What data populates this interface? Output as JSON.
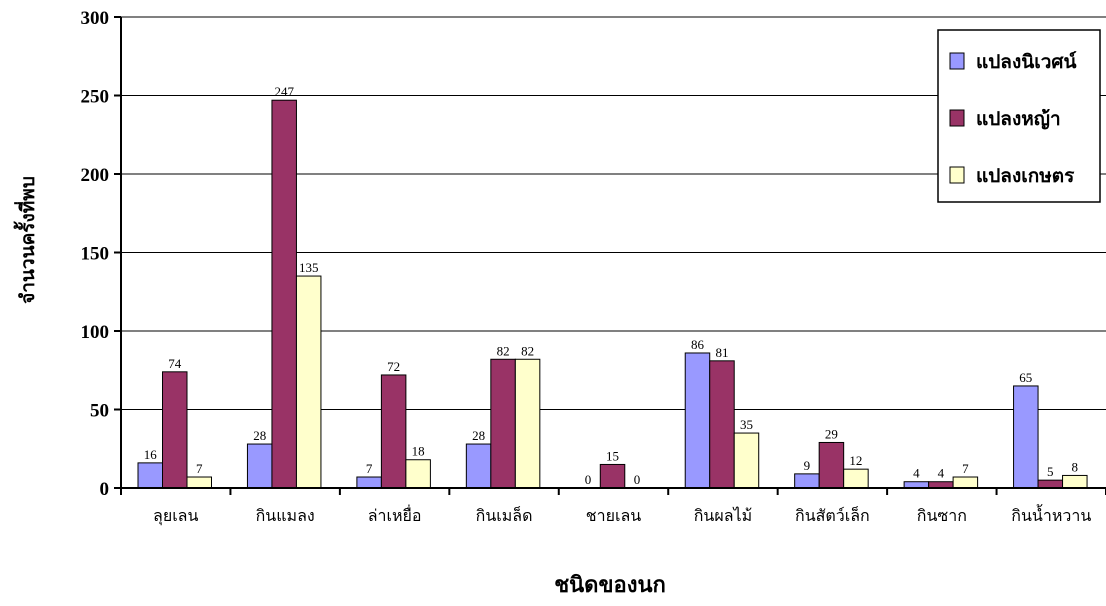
{
  "chart_data": {
    "type": "bar",
    "title": "",
    "xlabel": "ชนิดของนก",
    "ylabel": "จำนวนครั้งที่พบ",
    "ylim": [
      0,
      300
    ],
    "yticks": [
      "0",
      "50",
      "100",
      "150",
      "200",
      "250",
      "300"
    ],
    "grid": true,
    "legend_position": "top-right",
    "categories": [
      "ลุยเลน",
      "กินแมลง",
      "ล่าเหยื่อ",
      "กินเมล็ด",
      "ชายเลน",
      "กินผลไม้",
      "กินสัตว์เล็ก",
      "กินซาก",
      "กินน้ำหวาน"
    ],
    "series": [
      {
        "name": "แปลงนิเวศน์",
        "color": "#9999ff",
        "values": [
          16,
          28,
          7,
          28,
          0,
          86,
          9,
          4,
          65
        ]
      },
      {
        "name": "แปลงหญ้า",
        "color": "#993366",
        "values": [
          74,
          247,
          72,
          82,
          15,
          81,
          29,
          4,
          5
        ]
      },
      {
        "name": "แปลงเกษตร",
        "color": "#ffffcc",
        "values": [
          7,
          135,
          18,
          82,
          0,
          35,
          12,
          7,
          8
        ]
      }
    ]
  }
}
